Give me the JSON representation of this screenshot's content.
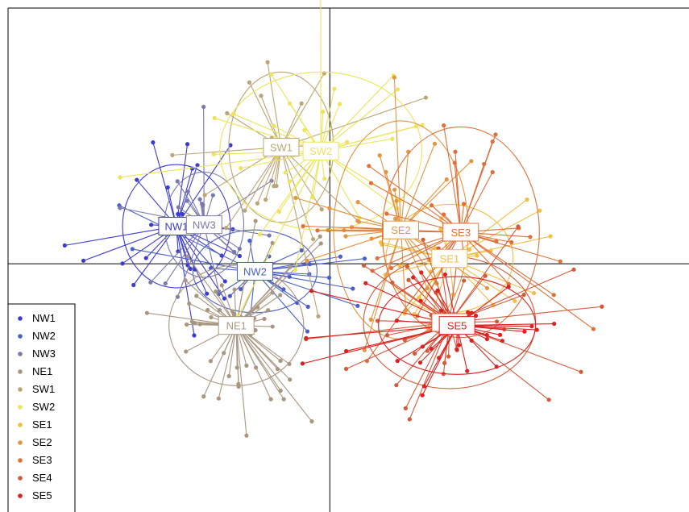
{
  "chart_data": {
    "type": "scatter",
    "description_type": "DAPC scatter with group centroids, inertia ellipses and star lines",
    "xlim": [
      -4.3,
      4.8
    ],
    "ylim": [
      -3.3,
      3.4
    ],
    "origin": [
      0,
      0
    ],
    "grid": false,
    "legend_position": "bottom-left",
    "groups": [
      {
        "name": "NW1",
        "color": "#3b3bd0",
        "centroid": [
          -2.05,
          0.5
        ],
        "spread": [
          0.7,
          0.75
        ],
        "ellipse": [
          0.72,
          0.82
        ],
        "n": 26,
        "label_overlap": "partial"
      },
      {
        "name": "NW2",
        "color": "#4a5fc8",
        "centroid": [
          -1.0,
          -0.1
        ],
        "spread": [
          0.75,
          0.45
        ],
        "ellipse": [
          0.83,
          0.55
        ],
        "n": 22
      },
      {
        "name": "NW3",
        "color": "#7a7aa8",
        "centroid": [
          -1.68,
          0.52
        ],
        "spread": [
          0.48,
          0.62
        ],
        "ellipse": [
          0.53,
          0.7
        ],
        "n": 20
      },
      {
        "name": "NE1",
        "color": "#a89680",
        "centroid": [
          -1.25,
          -0.82
        ],
        "spread": [
          0.55,
          0.7
        ],
        "ellipse": [
          0.9,
          0.8
        ],
        "n": 55
      },
      {
        "name": "SW1",
        "color": "#bca575",
        "centroid": [
          -0.65,
          1.55
        ],
        "spread": [
          0.6,
          0.85
        ],
        "ellipse": [
          0.7,
          1.0
        ],
        "n": 22
      },
      {
        "name": "SW2",
        "color": "#ede45a",
        "centroid": [
          -0.12,
          1.5
        ],
        "spread": [
          0.95,
          0.85
        ],
        "ellipse": [
          1.35,
          1.05
        ],
        "n": 30
      },
      {
        "name": "SE1",
        "color": "#f2bf42",
        "centroid": [
          1.6,
          0.07
        ],
        "spread": [
          0.8,
          0.6
        ],
        "ellipse": [
          0.85,
          0.72
        ],
        "n": 24
      },
      {
        "name": "SE2",
        "color": "#e39540",
        "centroid": [
          0.95,
          0.45
        ],
        "spread": [
          0.65,
          0.75
        ],
        "ellipse": [
          0.9,
          1.45
        ],
        "n": 30
      },
      {
        "name": "SE3",
        "color": "#e0703a",
        "centroid": [
          1.75,
          0.42
        ],
        "spread": [
          0.85,
          0.75
        ],
        "ellipse": [
          1.05,
          1.4
        ],
        "n": 34
      },
      {
        "name": "SE4",
        "color": "#d45a3a",
        "centroid": [
          1.6,
          -0.78
        ],
        "spread": [
          0.8,
          0.65
        ],
        "ellipse": [
          1.15,
          0.88
        ],
        "n": 34,
        "label_overlap": "partial"
      },
      {
        "name": "SE5",
        "color": "#dd2020",
        "centroid": [
          1.7,
          -0.82
        ],
        "spread": [
          0.8,
          0.6
        ],
        "ellipse": [
          1.05,
          0.65
        ],
        "n": 40
      }
    ],
    "legend": [
      "NW1",
      "NW2",
      "NW3",
      "NE1",
      "SW1",
      "SW2",
      "SE1",
      "SE2",
      "SE3",
      "SE4",
      "SE5"
    ]
  }
}
